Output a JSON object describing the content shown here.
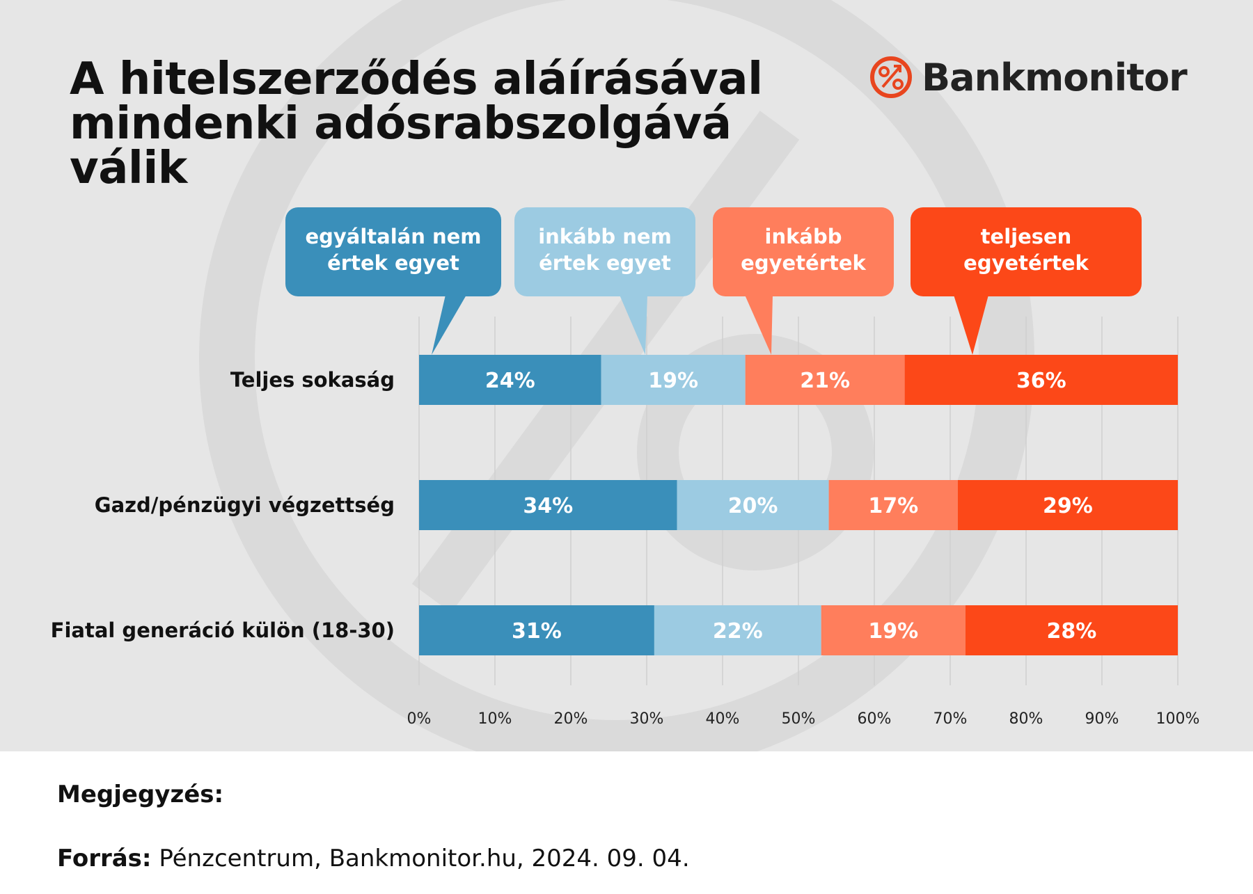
{
  "title": "A hitelszerződés aláírásával mindenki adósrabszolgává válik",
  "logo": {
    "text": "Bankmonitor",
    "icon": "percent-trend-icon",
    "color": "#e8451e"
  },
  "colors": {
    "background": "#e6e6e6",
    "gridline": "#cfcfcf",
    "series": [
      "#3a8fba",
      "#9ccbe2",
      "#ff7e5c",
      "#fc4818"
    ]
  },
  "chart_data": {
    "type": "bar",
    "orientation": "horizontal",
    "stacked": true,
    "categories": [
      "Teljes sokaság",
      "Gazd/pénzügyi végzettség",
      "Fiatal generáció külön (18-30)"
    ],
    "series": [
      {
        "name": "egyáltalán nem értek egyet",
        "values": [
          24,
          34,
          31
        ]
      },
      {
        "name": "inkább nem értek egyet",
        "values": [
          19,
          20,
          22
        ]
      },
      {
        "name": "inkább egyetértek",
        "values": [
          21,
          17,
          19
        ]
      },
      {
        "name": "teljesen egyetértek",
        "values": [
          36,
          29,
          28
        ]
      }
    ],
    "data_labels": [
      [
        "24%",
        "19%",
        "21%",
        "36%"
      ],
      [
        "34%",
        "20%",
        "17%",
        "29%"
      ],
      [
        "31%",
        "22%",
        "19%",
        "28%"
      ]
    ],
    "xlim": [
      0,
      100
    ],
    "xticks": [
      "0%",
      "10%",
      "20%",
      "30%",
      "40%",
      "50%",
      "60%",
      "70%",
      "80%",
      "90%",
      "100%"
    ],
    "grid": true,
    "legend": "callouts above bars"
  },
  "footer": {
    "note_label": "Megjegyzés:",
    "source_label": "Forrás:",
    "source_text": "Pénzcentrum, Bankmonitor.hu, 2024. 09. 04."
  }
}
